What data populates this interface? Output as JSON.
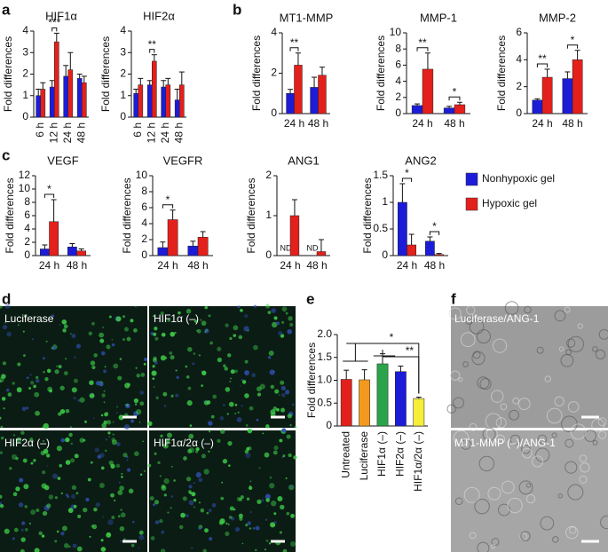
{
  "panel_labels": [
    "a",
    "b",
    "c",
    "d",
    "e",
    "f"
  ],
  "chart_data": [
    {
      "type": "bar",
      "title": "HIF1α",
      "ylabel": "Fold differences",
      "categories": [
        "6 h",
        "12 h",
        "24 h",
        "48 h"
      ],
      "series": [
        {
          "name": "Nonhypoxic gel",
          "color": "#1c1cd8",
          "values": [
            1.0,
            1.4,
            1.9,
            1.8
          ],
          "errors": [
            0.3,
            0.3,
            0.5,
            0.2
          ]
        },
        {
          "name": "Hypoxic gel",
          "color": "#e3201b",
          "values": [
            1.3,
            3.5,
            2.2,
            1.6
          ],
          "errors": [
            0.3,
            0.4,
            0.8,
            0.3
          ]
        }
      ],
      "ylim": [
        0,
        4
      ],
      "yticks": [
        0,
        1,
        2,
        3,
        4
      ],
      "significance": [
        null,
        "***",
        null,
        null
      ]
    },
    {
      "type": "bar",
      "title": "HIF2α",
      "ylabel": "Fold differences",
      "categories": [
        "6 h",
        "12 h",
        "24 h",
        "48 h"
      ],
      "series": [
        {
          "color": "#1c1cd8",
          "values": [
            1.1,
            1.5,
            1.4,
            0.8
          ],
          "errors": [
            0.2,
            0.2,
            0.3,
            0.5
          ]
        },
        {
          "color": "#e3201b",
          "values": [
            1.5,
            2.6,
            1.5,
            1.5
          ],
          "errors": [
            0.3,
            0.3,
            0.3,
            0.6
          ]
        }
      ],
      "ylim": [
        0,
        4
      ],
      "yticks": [
        0,
        1,
        2,
        3,
        4
      ],
      "significance": [
        null,
        "**",
        null,
        null
      ]
    },
    {
      "type": "bar",
      "title": "MT1-MMP",
      "ylabel": "Fold differences",
      "categories": [
        "24 h",
        "48 h"
      ],
      "series": [
        {
          "color": "#1c1cd8",
          "values": [
            1.0,
            1.3
          ],
          "errors": [
            0.2,
            0.5
          ]
        },
        {
          "color": "#e3201b",
          "values": [
            2.4,
            1.9
          ],
          "errors": [
            0.6,
            0.4
          ]
        }
      ],
      "ylim": [
        0,
        4
      ],
      "yticks": [
        0,
        2,
        4
      ],
      "significance": [
        "**",
        null
      ]
    },
    {
      "type": "bar",
      "title": "MMP-1",
      "ylabel": "Fold differences",
      "categories": [
        "24 h",
        "48 h"
      ],
      "series": [
        {
          "color": "#1c1cd8",
          "values": [
            1.0,
            0.7
          ],
          "errors": [
            0.2,
            0.2
          ]
        },
        {
          "color": "#e3201b",
          "values": [
            5.5,
            1.1
          ],
          "errors": [
            2.0,
            0.3
          ]
        }
      ],
      "ylim": [
        0,
        10
      ],
      "yticks": [
        0,
        2,
        4,
        6,
        8,
        10
      ],
      "significance": [
        "**",
        "*"
      ]
    },
    {
      "type": "bar",
      "title": "MMP-2",
      "ylabel": "Fold differences",
      "categories": [
        "24 h",
        "48 h"
      ],
      "series": [
        {
          "color": "#1c1cd8",
          "values": [
            1.0,
            2.6
          ],
          "errors": [
            0.1,
            0.5
          ]
        },
        {
          "color": "#e3201b",
          "values": [
            2.7,
            4.0
          ],
          "errors": [
            0.6,
            0.7
          ]
        }
      ],
      "ylim": [
        0,
        6
      ],
      "yticks": [
        0,
        2,
        4,
        6
      ],
      "significance": [
        "**",
        "*"
      ]
    },
    {
      "type": "bar",
      "title": "VEGF",
      "ylabel": "Fold differences",
      "categories": [
        "24 h",
        "48 h"
      ],
      "series": [
        {
          "color": "#1c1cd8",
          "values": [
            1.0,
            1.3
          ],
          "errors": [
            0.6,
            0.5
          ]
        },
        {
          "color": "#e3201b",
          "values": [
            5.1,
            0.7
          ],
          "errors": [
            3.3,
            0.3
          ]
        }
      ],
      "ylim": [
        0,
        12
      ],
      "yticks": [
        0,
        2,
        4,
        6,
        8,
        10,
        12
      ],
      "significance": [
        "*",
        null
      ]
    },
    {
      "type": "bar",
      "title": "VEGFR",
      "ylabel": "Fold differences",
      "categories": [
        "24 h",
        "48 h"
      ],
      "series": [
        {
          "color": "#1c1cd8",
          "values": [
            1.0,
            1.2
          ],
          "errors": [
            0.7,
            0.6
          ]
        },
        {
          "color": "#e3201b",
          "values": [
            4.5,
            2.3
          ],
          "errors": [
            1.2,
            0.7
          ]
        }
      ],
      "ylim": [
        0,
        10
      ],
      "yticks": [
        0,
        2,
        4,
        6,
        8,
        10
      ],
      "significance": [
        "*",
        null
      ]
    },
    {
      "type": "bar",
      "title": "ANG1",
      "ylabel": "Fold differences",
      "categories": [
        "24 h",
        "48 h"
      ],
      "series": [
        {
          "color": "#1c1cd8",
          "values": [
            null,
            null
          ],
          "value_labels": [
            "ND",
            "ND"
          ]
        },
        {
          "color": "#e3201b",
          "values": [
            1.0,
            0.1
          ],
          "errors": [
            0.4,
            0.3
          ]
        }
      ],
      "ylim": [
        0,
        2
      ],
      "yticks": [
        0,
        1,
        2
      ]
    },
    {
      "type": "bar",
      "title": "ANG2",
      "ylabel": "Fold differences",
      "categories": [
        "24 h",
        "48 h"
      ],
      "series": [
        {
          "color": "#1c1cd8",
          "values": [
            1.0,
            0.27
          ],
          "errors": [
            0.35,
            0.08
          ]
        },
        {
          "color": "#e3201b",
          "values": [
            0.2,
            0.02
          ],
          "errors": [
            0.2,
            0.02
          ]
        }
      ],
      "ylim": [
        0,
        1.5
      ],
      "yticks": [
        0,
        0.5,
        1,
        1.5
      ],
      "significance": [
        "*",
        "*"
      ]
    },
    {
      "type": "bar",
      "ylabel": "Fold differences",
      "categories": [
        "Untreated",
        "Luciferase",
        "HIF1α (–)",
        "HIF2α (–)",
        "HIF1α/2α (–)"
      ],
      "values": [
        1.02,
        1.01,
        1.36,
        1.19,
        0.6
      ],
      "errors": [
        0.2,
        0.22,
        0.22,
        0.12,
        0.03
      ],
      "colors": [
        "#e3201b",
        "#f39a1e",
        "#2aa34a",
        "#1c1cd8",
        "#f5ee3a"
      ],
      "ylim": [
        0,
        2
      ],
      "yticks": [
        0,
        0.5,
        {
          "value": 1,
          "label": "1.0"
        },
        1.5,
        {
          "value": 2,
          "label": "2.0"
        }
      ],
      "annotations": [
        "*",
        "**"
      ]
    }
  ],
  "images": {
    "d": [
      "Luciferase",
      "HIF1α (–)",
      "HIF2α (–)",
      "HIF1α/2α (–)"
    ],
    "f": [
      "Luciferase/ANG-1",
      "MT1-MMP (–)/ANG-1"
    ]
  }
}
